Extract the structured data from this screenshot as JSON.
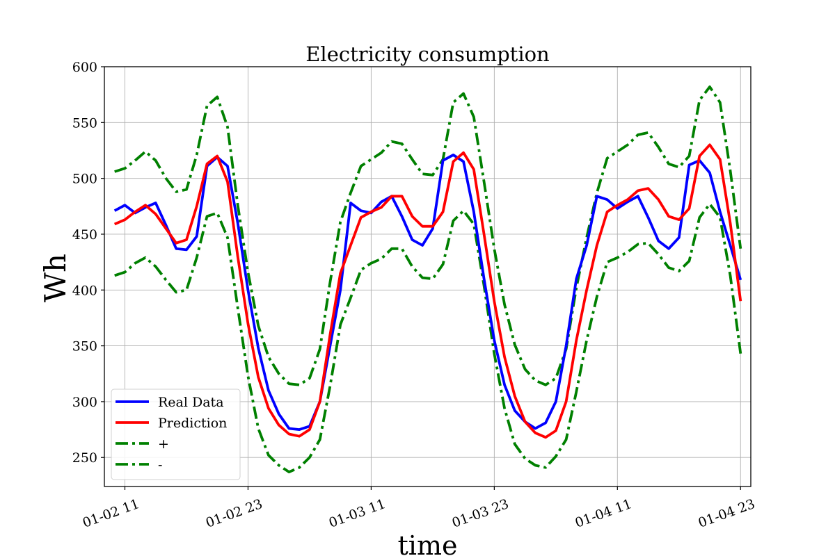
{
  "chart_data": {
    "type": "line",
    "title": "Electricity consumption",
    "xlabel": "time",
    "ylabel": "Wh",
    "ylim": [
      224,
      600
    ],
    "yticks": [
      250,
      300,
      350,
      400,
      450,
      500,
      550,
      600
    ],
    "ytick_labels": [
      "250",
      "300",
      "350",
      "400",
      "450",
      "500",
      "550",
      "600"
    ],
    "x_start": "01-02 10",
    "x_step": "1 hour",
    "x_index_range": [
      -1.0,
      62.0
    ],
    "xticks": [
      {
        "index": 1,
        "label": "01-02 11"
      },
      {
        "index": 13,
        "label": "01-02 23"
      },
      {
        "index": 25,
        "label": "01-03 11"
      },
      {
        "index": 37,
        "label": "01-03 23"
      },
      {
        "index": 49,
        "label": "01-04 11"
      },
      {
        "index": 61,
        "label": "01-04 23"
      }
    ],
    "grid": true,
    "legend_position": "lower-left",
    "series": [
      {
        "name": "Real Data",
        "color": "#0000ff",
        "style": "solid",
        "values": [
          471,
          476,
          469,
          474,
          478,
          458,
          437,
          436,
          448,
          511,
          519,
          511,
          460,
          400,
          348,
          310,
          289,
          276,
          275,
          278,
          300,
          350,
          400,
          478,
          471,
          469,
          479,
          484,
          466,
          445,
          440,
          455,
          516,
          521,
          515,
          470,
          410,
          355,
          315,
          292,
          282,
          276,
          281,
          300,
          350,
          410,
          440,
          484,
          481,
          473,
          479,
          484,
          465,
          444,
          437,
          447,
          512,
          516,
          505,
          470,
          440,
          409
        ]
      },
      {
        "name": "Prediction",
        "color": "#ff0000",
        "style": "solid",
        "values": [
          459,
          463,
          470,
          476,
          468,
          455,
          442,
          445,
          475,
          513,
          520,
          497,
          430,
          370,
          322,
          294,
          279,
          271,
          269,
          275,
          300,
          360,
          415,
          440,
          465,
          470,
          474,
          484,
          484,
          466,
          457,
          457,
          470,
          515,
          523,
          508,
          450,
          390,
          340,
          305,
          282,
          272,
          268,
          274,
          300,
          355,
          400,
          440,
          470,
          476,
          481,
          489,
          491,
          481,
          466,
          463,
          473,
          520,
          530,
          517,
          460,
          390
        ]
      },
      {
        "name": "+",
        "color": "#008000",
        "style": "dashdot",
        "values": [
          506,
          509,
          516,
          524,
          516,
          500,
          488,
          490,
          521,
          565,
          573,
          546,
          476,
          416,
          368,
          340,
          325,
          316,
          315,
          321,
          347,
          407,
          461,
          487,
          511,
          517,
          523,
          533,
          531,
          517,
          504,
          503,
          517,
          568,
          576,
          555,
          497,
          437,
          387,
          351,
          329,
          319,
          315,
          321,
          347,
          402,
          447,
          487,
          518,
          524,
          530,
          539,
          541,
          528,
          513,
          510,
          520,
          570,
          582,
          568,
          507,
          437
        ]
      },
      {
        "name": "-",
        "color": "#008000",
        "style": "dashdot",
        "values": [
          413,
          416,
          424,
          429,
          421,
          409,
          398,
          400,
          429,
          466,
          469,
          447,
          384,
          323,
          276,
          252,
          243,
          237,
          241,
          250,
          266,
          314,
          369,
          393,
          418,
          424,
          428,
          437,
          437,
          421,
          411,
          410,
          423,
          462,
          471,
          459,
          404,
          343,
          294,
          262,
          249,
          243,
          241,
          251,
          266,
          309,
          355,
          394,
          425,
          429,
          434,
          441,
          442,
          432,
          420,
          417,
          426,
          465,
          477,
          465,
          413,
          343
        ]
      }
    ]
  }
}
